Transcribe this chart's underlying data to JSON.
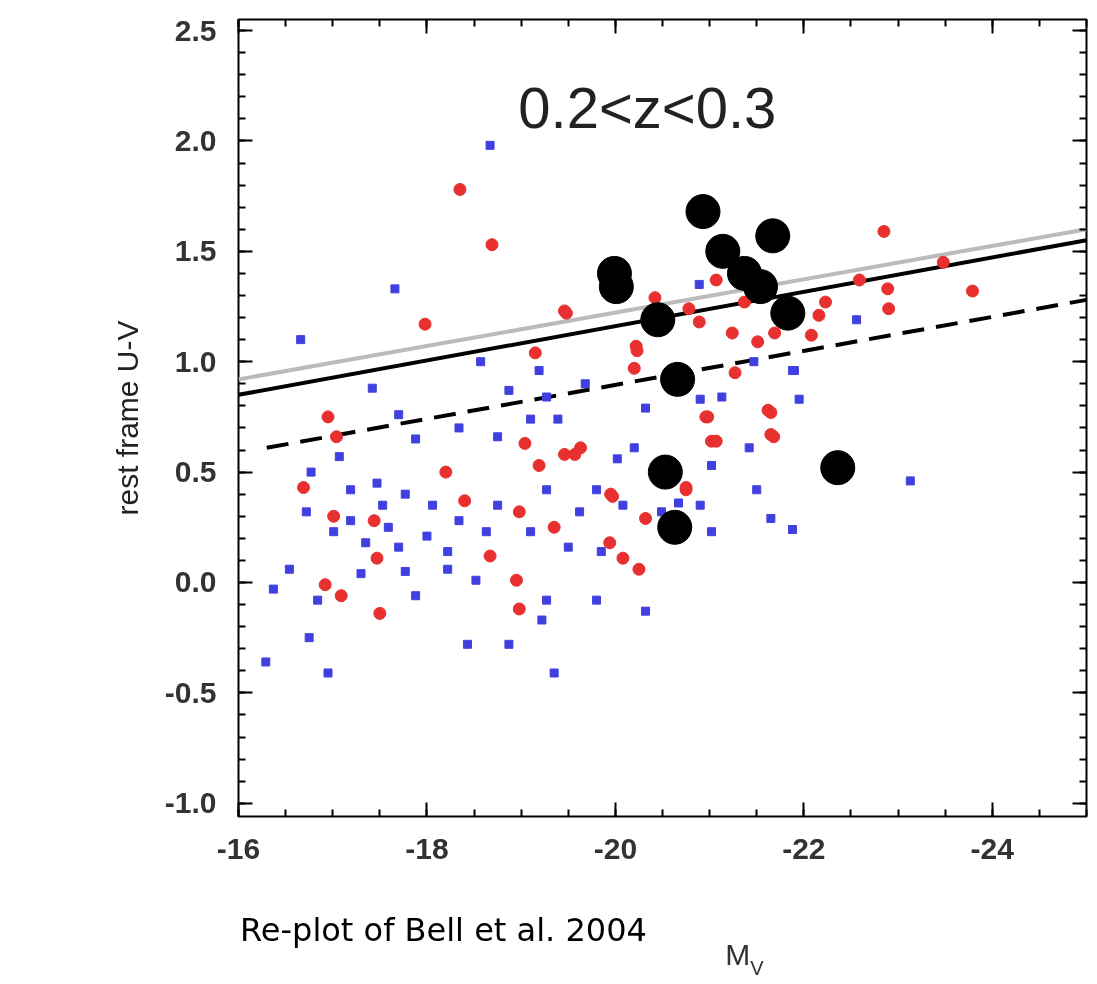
{
  "chart_data": {
    "type": "scatter",
    "xlabel": "M$_{V}$",
    "ylabel": "rest frame U-V",
    "annotations": [
      "0.2<z<0.3",
      "Re-plot of Bell et al. 2004"
    ],
    "xlim": [
      -16,
      -25
    ],
    "ylim": [
      -1.06,
      2.55
    ],
    "xticks": [
      -16,
      -18,
      -20,
      -22,
      -24
    ],
    "yticks": [
      {
        "value": -1,
        "label": "-1.0"
      },
      -0.5,
      {
        "value": 0,
        "label": "0.0"
      },
      0.5,
      {
        "value": 1,
        "label": "1.0"
      },
      1.5,
      {
        "value": 2,
        "label": "2.0"
      },
      2.5
    ],
    "grid": false,
    "series": [
      {
        "marker": "square",
        "color": "#4040e0",
        "x": [
          -16.66,
          -17.42,
          -18.57,
          -19.19,
          -18.87,
          -19.27,
          -19.68,
          -17.7,
          -18.34,
          -17.88,
          -18.75,
          -19.39,
          -20.2,
          -20.32,
          -21.13,
          -21.88,
          -21.95,
          -21.42,
          -21.02,
          -21.5,
          -21.65,
          -21.88,
          -21.02,
          -23.13,
          -16.77,
          -17.07,
          -17.47,
          -17.19,
          -17.77,
          -18.06,
          -16.72,
          -17.01,
          -17.35,
          -17.7,
          -18.0,
          -18.34,
          -18.63,
          -19.1,
          -19.27,
          -19.62,
          -19.8,
          -20.08,
          -19.5,
          -19.85,
          -18.22,
          -18.52,
          -17.77,
          -17.3,
          -16.54,
          -16.84,
          -17.88,
          -19.27,
          -19.8,
          -20.32,
          -19.22,
          -16.37,
          -16.75,
          -16.29,
          -16.95,
          -18.43,
          -18.87,
          -19.35,
          -19.1,
          -20.02,
          -20.9,
          -20.49,
          -20.67,
          -20.9,
          -17.59,
          -18.22,
          -18.75,
          -17.19,
          -17.53,
          -20.89,
          -22.56,
          -21.47,
          -21.9,
          -18.67,
          -17.66
        ],
        "values": [
          1.1,
          0.88,
          1.0,
          0.96,
          0.87,
          0.84,
          0.9,
          0.76,
          0.7,
          0.65,
          0.66,
          0.74,
          0.61,
          0.79,
          0.84,
          0.96,
          0.83,
          0.61,
          0.53,
          0.42,
          0.29,
          0.24,
          0.23,
          0.46,
          0.5,
          0.57,
          0.45,
          0.42,
          0.4,
          0.35,
          0.32,
          0.23,
          0.18,
          0.16,
          0.21,
          0.28,
          0.23,
          0.23,
          0.42,
          0.32,
          0.42,
          0.35,
          0.16,
          0.14,
          0.06,
          0.01,
          0.05,
          0.04,
          0.06,
          -0.08,
          -0.06,
          -0.08,
          -0.08,
          -0.13,
          -0.17,
          -0.03,
          -0.25,
          -0.36,
          -0.41,
          -0.28,
          -0.28,
          -0.41,
          0.74,
          0.56,
          0.83,
          0.32,
          0.36,
          0.35,
          0.25,
          0.14,
          0.35,
          0.28,
          0.35,
          1.35,
          1.19,
          1.0,
          0.96,
          1.98,
          1.33
        ]
      },
      {
        "marker": "circle",
        "color": "#e83030",
        "x": [
          -18.35,
          -18.69,
          -17.98,
          -19.46,
          -22.85,
          -23.48,
          -23.79,
          -19.48,
          -22.89,
          -22.9,
          -22.59,
          -22.23,
          -22.16,
          -22.08,
          -21.69,
          -21.51,
          -21.24,
          -20.89,
          -20.78,
          -20.42,
          -21.07,
          -21.37,
          -20.22,
          -20.2,
          -21.27,
          -20.96,
          -21.62,
          -21.65,
          -21.02,
          -19.63,
          -19.46,
          -20.75,
          -19.95,
          -16.95,
          -17.04,
          -16.69,
          -19.04,
          -19.19,
          -19.57,
          -18.2,
          -17.01,
          -17.44,
          -18.4,
          -18.98,
          -19.35,
          -18.67,
          -17.47,
          -19.97,
          -20.32,
          -19.94,
          -20.08,
          -20.25,
          -20.75,
          -16.92,
          -17.09,
          -17.5,
          -18.95,
          -18.98,
          -20.98,
          -21.65,
          -21.68,
          -21.07,
          -20.23,
          -19.15
        ],
        "values": [
          1.78,
          1.53,
          1.17,
          1.23,
          1.59,
          1.45,
          1.32,
          1.22,
          1.33,
          1.24,
          1.37,
          1.27,
          1.21,
          1.12,
          1.13,
          1.09,
          1.13,
          1.18,
          1.24,
          1.29,
          1.37,
          1.27,
          1.07,
          0.97,
          0.95,
          0.75,
          0.78,
          0.67,
          0.64,
          0.61,
          0.58,
          0.43,
          0.4,
          0.75,
          0.66,
          0.43,
          0.63,
          0.53,
          0.58,
          0.5,
          0.3,
          0.28,
          0.37,
          0.32,
          0.25,
          0.12,
          0.11,
          0.39,
          0.29,
          0.18,
          0.11,
          0.06,
          0.42,
          -0.01,
          -0.06,
          -0.14,
          0.01,
          -0.12,
          0.75,
          0.77,
          0.66,
          0.64,
          1.05,
          1.04
        ]
      },
      {
        "marker": "circle",
        "color": "#000000",
        "x": [
          -20.93,
          -21.67,
          -19.99,
          -20.01,
          -21.14,
          -21.37,
          -21.54,
          -21.83,
          -20.45,
          -20.66,
          -20.53,
          -22.36,
          -20.63
        ],
        "values": [
          1.68,
          1.57,
          1.4,
          1.34,
          1.5,
          1.4,
          1.34,
          1.22,
          1.19,
          0.92,
          0.5,
          0.52,
          0.25
        ]
      },
      {
        "type": "line",
        "line_style": "solid",
        "color": "#bbbbbb",
        "x": [
          -16,
          -25
        ],
        "values": [
          0.92,
          1.6
        ]
      },
      {
        "type": "line",
        "line_style": "solid",
        "color": "#000000",
        "x": [
          -16,
          -25
        ],
        "values": [
          0.85,
          1.55
        ]
      },
      {
        "type": "line",
        "line_style": "dashed",
        "color": "#000000",
        "x": [
          -16.3,
          -25
        ],
        "values": [
          0.61,
          1.28
        ]
      }
    ]
  }
}
